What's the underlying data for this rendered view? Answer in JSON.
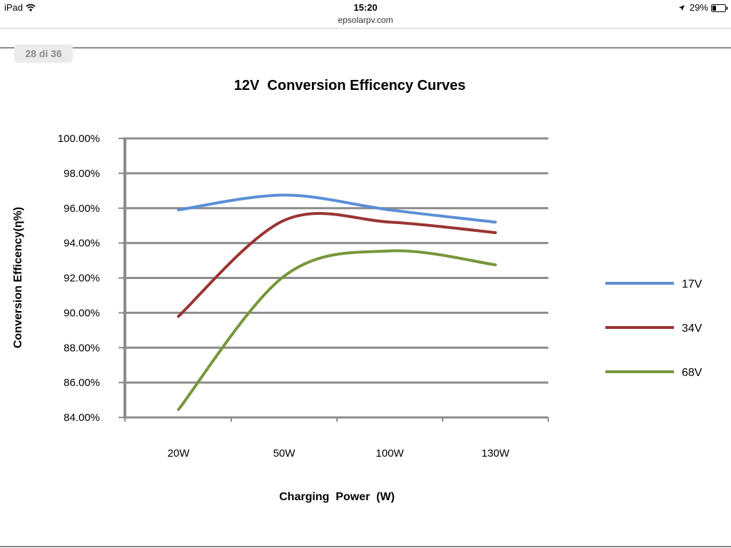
{
  "status_bar": {
    "device": "iPad",
    "time": "15:20",
    "battery": "29%",
    "icons": [
      "wifi-icon",
      "location-arrow-icon",
      "battery-icon"
    ]
  },
  "browser": {
    "address": "epsolarpv.com"
  },
  "viewer": {
    "page_counter": "28 di 36"
  },
  "colors": {
    "series_17v": "#5b8fd6",
    "series_34v": "#9a3532",
    "series_68v": "#77963b",
    "gridline": "#8c8c8c"
  },
  "chart_data": {
    "type": "line",
    "title": "12V  Conversion Efficency Curves",
    "xlabel": "Charging  Power  (W)",
    "ylabel": "Conversion Efficency(η%)",
    "categories": [
      "20W",
      "50W",
      "100W",
      "130W"
    ],
    "y_tick_labels": [
      "84.00%",
      "86.00%",
      "88.00%",
      "90.00%",
      "92.00%",
      "94.00%",
      "96.00%",
      "98.00%",
      "100.00%"
    ],
    "ylim": [
      84,
      100
    ],
    "y_step": 2,
    "grid": true,
    "legend_position": "right",
    "series": [
      {
        "name": "17V",
        "color": "#5b8fd6",
        "values": [
          95.9,
          96.75,
          95.9,
          95.2
        ]
      },
      {
        "name": "34V",
        "color": "#9a3532",
        "values": [
          89.8,
          95.3,
          95.2,
          94.6
        ]
      },
      {
        "name": "68V",
        "color": "#77963b",
        "values": [
          84.45,
          92.1,
          93.55,
          92.75
        ]
      }
    ]
  }
}
